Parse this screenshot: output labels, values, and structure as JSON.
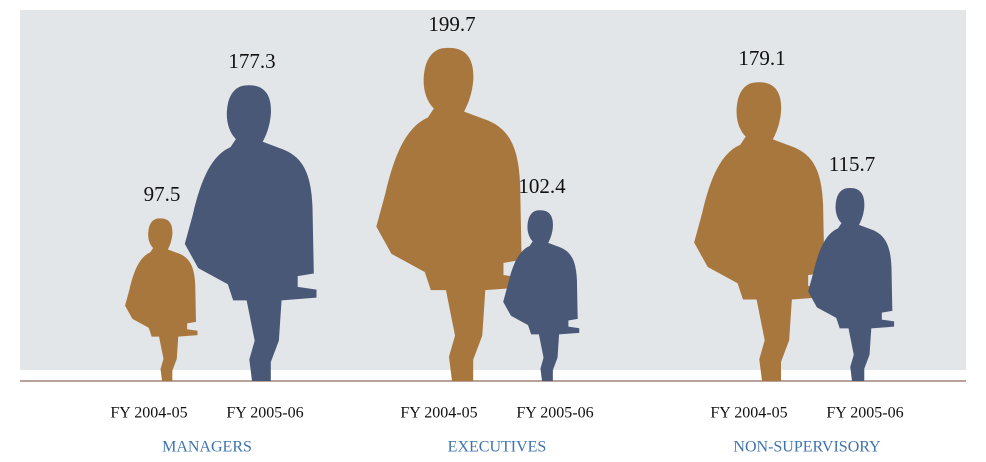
{
  "chart_data": {
    "type": "pictogram",
    "categories": [
      "MANAGERS",
      "EXECUTIVES",
      "NON-SUPERVISORY"
    ],
    "series": [
      {
        "name": "FY 2004-05",
        "color": "#a8773d",
        "values": [
          97.5,
          199.7,
          179.1
        ]
      },
      {
        "name": "FY 2005-06",
        "color": "#4a5878",
        "values": [
          177.3,
          102.4,
          115.7
        ]
      }
    ]
  }
}
